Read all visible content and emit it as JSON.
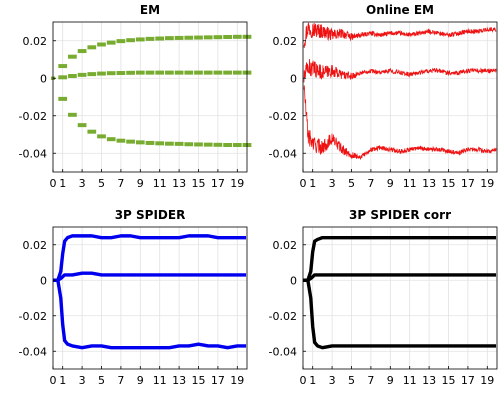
{
  "chart_data": [
    {
      "type": "scatter",
      "title": "EM",
      "xlim": [
        0,
        20
      ],
      "ylim": [
        -0.05,
        0.03
      ],
      "xticks": [
        0,
        1,
        3,
        5,
        7,
        9,
        11,
        13,
        15,
        17,
        19
      ],
      "yticks": [
        0.02,
        0,
        -0.02,
        -0.04
      ],
      "ytick_labels": [
        "0.02",
        "0",
        "-0.02",
        "-0.04"
      ],
      "grid": true,
      "style": "steps",
      "color": "#77ac30",
      "series": [
        {
          "x": [
            0,
            1,
            2,
            3,
            4,
            5,
            6,
            7,
            8,
            9,
            10,
            11,
            12,
            13,
            14,
            15,
            16,
            17,
            18,
            19,
            20
          ],
          "y": [
            0,
            0.0065,
            0.0115,
            0.0145,
            0.0165,
            0.018,
            0.019,
            0.0198,
            0.0203,
            0.0207,
            0.021,
            0.0212,
            0.0214,
            0.0215,
            0.0216,
            0.0217,
            0.0218,
            0.0219,
            0.022,
            0.0221,
            0.0221
          ]
        },
        {
          "x": [
            0,
            1,
            2,
            3,
            4,
            5,
            6,
            7,
            8,
            9,
            10,
            11,
            12,
            13,
            14,
            15,
            16,
            17,
            18,
            19,
            20
          ],
          "y": [
            0,
            0.0005,
            0.0012,
            0.0018,
            0.0022,
            0.0025,
            0.0027,
            0.0028,
            0.0029,
            0.003,
            0.003,
            0.003,
            0.003,
            0.003,
            0.003,
            0.003,
            0.003,
            0.003,
            0.003,
            0.003,
            0.003
          ]
        },
        {
          "x": [
            0,
            1,
            2,
            3,
            4,
            5,
            6,
            7,
            8,
            9,
            10,
            11,
            12,
            13,
            14,
            15,
            16,
            17,
            18,
            19,
            20
          ],
          "y": [
            0,
            -0.011,
            -0.0195,
            -0.025,
            -0.0285,
            -0.031,
            -0.0325,
            -0.0333,
            -0.0338,
            -0.0342,
            -0.0345,
            -0.0347,
            -0.0349,
            -0.035,
            -0.0352,
            -0.0353,
            -0.0354,
            -0.0355,
            -0.0356,
            -0.0356,
            -0.0356
          ]
        }
      ]
    },
    {
      "type": "line",
      "title": "Online EM",
      "xlim": [
        0,
        20
      ],
      "ylim": [
        -0.05,
        0.03
      ],
      "xticks": [
        0,
        1,
        3,
        5,
        7,
        9,
        11,
        13,
        15,
        17,
        19
      ],
      "yticks": [
        0.02,
        0,
        -0.02,
        -0.04
      ],
      "ytick_labels": [
        "0.02",
        "0",
        "-0.02",
        "-0.04"
      ],
      "grid": true,
      "style": "noisy",
      "color": "#ee1111",
      "series": [
        {
          "x": [
            0.1,
            0.5,
            1,
            2,
            3,
            4,
            5,
            6,
            7,
            8,
            9,
            10,
            11,
            12,
            13,
            14,
            15,
            16,
            17,
            18,
            19,
            19.9
          ],
          "y": [
            0.02,
            0.027,
            0.026,
            0.025,
            0.023,
            0.024,
            0.022,
            0.023,
            0.024,
            0.023,
            0.024,
            0.024,
            0.023,
            0.024,
            0.025,
            0.024,
            0.023,
            0.024,
            0.025,
            0.025,
            0.026,
            0.026
          ]
        },
        {
          "x": [
            0.1,
            0.5,
            1,
            2,
            3,
            4,
            5,
            6,
            7,
            8,
            9,
            10,
            11,
            12,
            13,
            14,
            15,
            16,
            17,
            18,
            19,
            19.9
          ],
          "y": [
            0,
            0.006,
            0.005,
            0.003,
            0.004,
            0.002,
            0.001,
            0.003,
            0.004,
            0.003,
            0.004,
            0.003,
            0.002,
            0.003,
            0.004,
            0.004,
            0.003,
            0.003,
            0.004,
            0.004,
            0.004,
            0.004
          ]
        },
        {
          "x": [
            0.1,
            0.5,
            1,
            2,
            3,
            4,
            5,
            6,
            7,
            8,
            9,
            10,
            11,
            12,
            13,
            14,
            15,
            16,
            17,
            18,
            19,
            19.9
          ],
          "y": [
            -0.004,
            -0.03,
            -0.035,
            -0.037,
            -0.032,
            -0.038,
            -0.041,
            -0.042,
            -0.038,
            -0.037,
            -0.038,
            -0.039,
            -0.038,
            -0.037,
            -0.038,
            -0.038,
            -0.039,
            -0.04,
            -0.038,
            -0.038,
            -0.039,
            -0.038
          ]
        }
      ]
    },
    {
      "type": "line",
      "title": "3P SPIDER",
      "xlim": [
        0,
        20
      ],
      "ylim": [
        -0.05,
        0.03
      ],
      "xticks": [
        0,
        1,
        3,
        5,
        7,
        9,
        11,
        13,
        15,
        17,
        19
      ],
      "yticks": [
        0.02,
        0,
        -0.02,
        -0.04
      ],
      "ytick_labels": [
        "0.02",
        "0",
        "-0.02",
        "-0.04"
      ],
      "grid": true,
      "style": "thick",
      "color": "#0000ee",
      "series": [
        {
          "x": [
            0,
            0.5,
            0.8,
            1,
            1.2,
            1.5,
            2,
            3,
            4,
            5,
            6,
            7,
            8,
            9,
            10,
            11,
            12,
            13,
            14,
            15,
            16,
            17,
            18,
            19,
            19.9
          ],
          "y": [
            0,
            0,
            0.005,
            0.015,
            0.022,
            0.024,
            0.025,
            0.025,
            0.025,
            0.024,
            0.024,
            0.025,
            0.025,
            0.024,
            0.024,
            0.024,
            0.024,
            0.024,
            0.025,
            0.025,
            0.025,
            0.024,
            0.024,
            0.024,
            0.024
          ]
        },
        {
          "x": [
            0,
            0.5,
            0.8,
            1,
            1.2,
            1.5,
            2,
            3,
            4,
            5,
            6,
            7,
            8,
            9,
            10,
            11,
            12,
            13,
            14,
            15,
            16,
            17,
            18,
            19,
            19.9
          ],
          "y": [
            0,
            0,
            0.001,
            0.002,
            0.003,
            0.003,
            0.003,
            0.004,
            0.004,
            0.003,
            0.003,
            0.003,
            0.003,
            0.003,
            0.003,
            0.003,
            0.003,
            0.003,
            0.003,
            0.003,
            0.003,
            0.003,
            0.003,
            0.003,
            0.003
          ]
        },
        {
          "x": [
            0,
            0.5,
            0.8,
            1,
            1.2,
            1.5,
            2,
            3,
            4,
            5,
            6,
            7,
            8,
            9,
            10,
            11,
            12,
            13,
            14,
            15,
            16,
            17,
            18,
            19,
            19.9
          ],
          "y": [
            0,
            0,
            -0.01,
            -0.025,
            -0.034,
            -0.036,
            -0.037,
            -0.038,
            -0.037,
            -0.037,
            -0.038,
            -0.038,
            -0.038,
            -0.038,
            -0.038,
            -0.038,
            -0.038,
            -0.037,
            -0.037,
            -0.036,
            -0.037,
            -0.037,
            -0.038,
            -0.037,
            -0.037
          ]
        }
      ]
    },
    {
      "type": "line",
      "title": "3P SPIDER corr",
      "xlim": [
        0,
        20
      ],
      "ylim": [
        -0.05,
        0.03
      ],
      "xticks": [
        0,
        1,
        3,
        5,
        7,
        9,
        11,
        13,
        15,
        17,
        19
      ],
      "yticks": [
        0.02,
        0,
        -0.02,
        -0.04
      ],
      "ytick_labels": [
        "0.02",
        "0",
        "-0.02",
        "-0.04"
      ],
      "grid": true,
      "style": "thick",
      "color": "#000000",
      "series": [
        {
          "x": [
            0,
            0.5,
            0.8,
            1,
            1.2,
            1.5,
            2,
            3,
            4,
            5,
            6,
            7,
            8,
            9,
            10,
            11,
            12,
            13,
            14,
            15,
            16,
            17,
            18,
            19,
            19.9
          ],
          "y": [
            0,
            0,
            0.005,
            0.016,
            0.022,
            0.023,
            0.024,
            0.024,
            0.024,
            0.024,
            0.024,
            0.024,
            0.024,
            0.024,
            0.024,
            0.024,
            0.024,
            0.024,
            0.024,
            0.024,
            0.024,
            0.024,
            0.024,
            0.024,
            0.024
          ]
        },
        {
          "x": [
            0,
            0.5,
            0.8,
            1,
            1.2,
            1.5,
            2,
            3,
            4,
            5,
            6,
            7,
            8,
            9,
            10,
            11,
            12,
            13,
            14,
            15,
            16,
            17,
            18,
            19,
            19.9
          ],
          "y": [
            0,
            0,
            0.001,
            0.002,
            0.003,
            0.003,
            0.003,
            0.003,
            0.003,
            0.003,
            0.003,
            0.003,
            0.003,
            0.003,
            0.003,
            0.003,
            0.003,
            0.003,
            0.003,
            0.003,
            0.003,
            0.003,
            0.003,
            0.003,
            0.003
          ]
        },
        {
          "x": [
            0,
            0.5,
            0.8,
            1,
            1.2,
            1.5,
            2,
            3,
            4,
            5,
            6,
            7,
            8,
            9,
            10,
            11,
            12,
            13,
            14,
            15,
            16,
            17,
            18,
            19,
            19.9
          ],
          "y": [
            0,
            0,
            -0.01,
            -0.026,
            -0.035,
            -0.037,
            -0.038,
            -0.037,
            -0.037,
            -0.037,
            -0.037,
            -0.037,
            -0.037,
            -0.037,
            -0.037,
            -0.037,
            -0.037,
            -0.037,
            -0.037,
            -0.037,
            -0.037,
            -0.037,
            -0.037,
            -0.037,
            -0.037
          ]
        }
      ]
    }
  ]
}
